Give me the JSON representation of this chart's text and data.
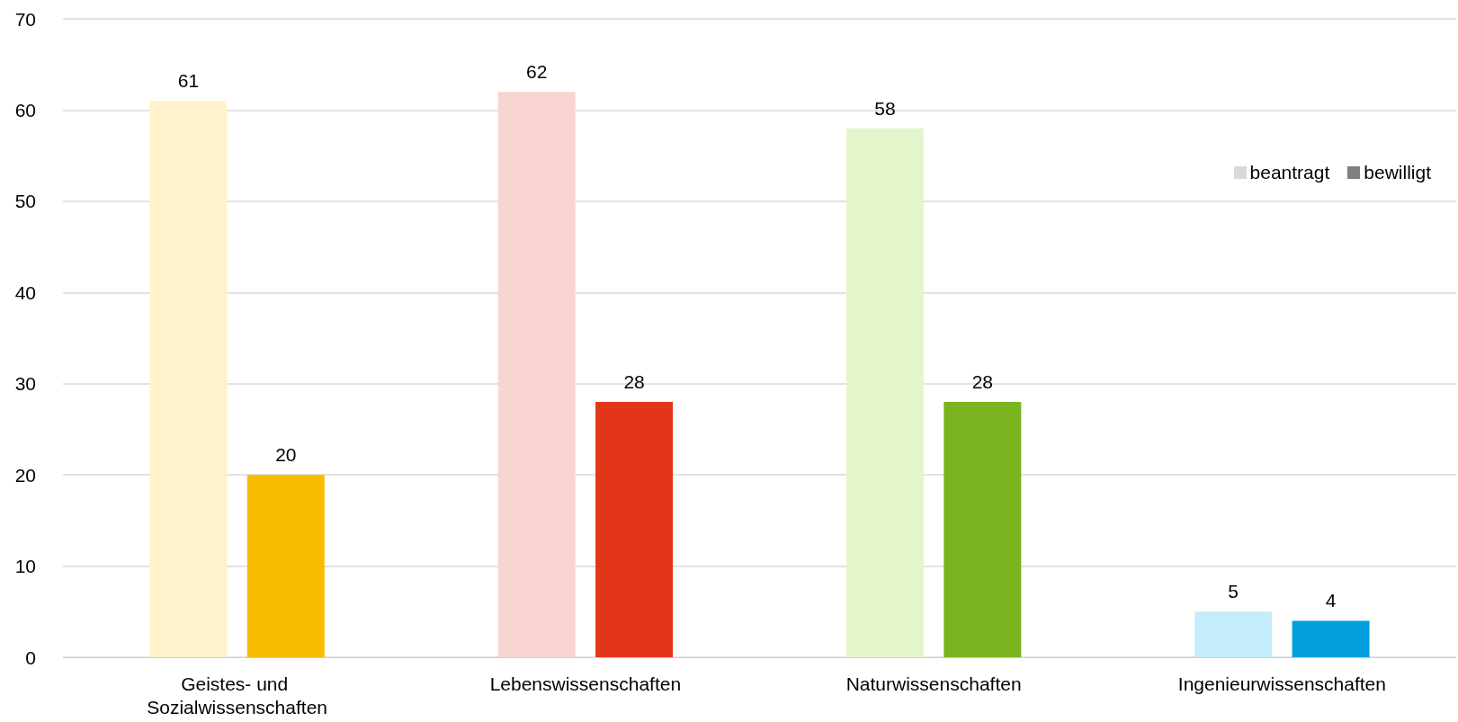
{
  "chart_data": {
    "type": "bar",
    "categories": [
      "Geistes- und Sozialwissenschaften",
      "Lebenswissenschaften",
      "Naturwissenschaften",
      "Ingenieurwissenschaften"
    ],
    "series": [
      {
        "name": "beantragt",
        "color": "#d9d9d9",
        "colors": [
          "#fff2cc",
          "#f8d5d0",
          "#e4f5cc",
          "#c5ecfa"
        ],
        "values": [
          61,
          62,
          58,
          5
        ]
      },
      {
        "name": "bewilligt",
        "color": "#808080",
        "colors": [
          "#f9bc00",
          "#e33519",
          "#7ab51f",
          "#009fdb"
        ],
        "values": [
          20,
          28,
          28,
          4
        ]
      }
    ],
    "ylim": [
      0,
      70
    ],
    "yticks": [
      0,
      10,
      20,
      30,
      40,
      50,
      60,
      70
    ],
    "grid": "y",
    "legend": "top right",
    "data_labels": true
  }
}
